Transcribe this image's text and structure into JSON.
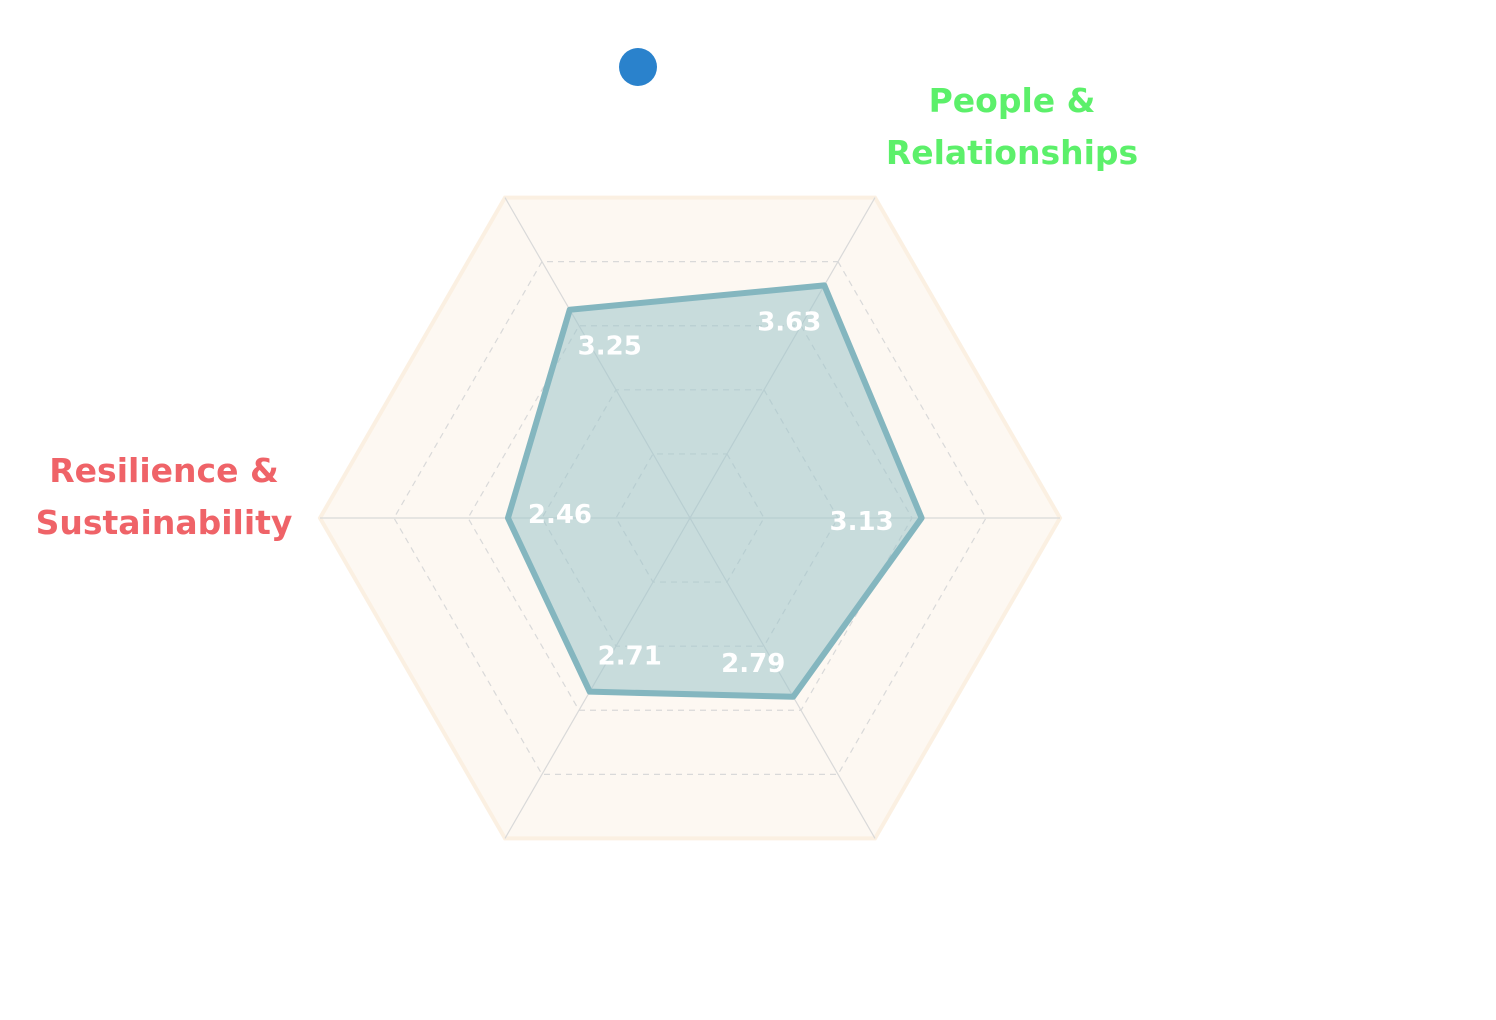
{
  "chart_data": {
    "type": "radar",
    "max": 5,
    "ring_count": 5,
    "axes": [
      {
        "label": "",
        "value": 3.63,
        "label_lines": [
          "People &",
          "Relationships"
        ],
        "label_color": "#5cf06a"
      },
      {
        "label": "",
        "value": 3.13,
        "label_lines": [],
        "label_color": ""
      },
      {
        "label": "",
        "value": 2.79,
        "label_lines": [],
        "label_color": ""
      },
      {
        "label": "",
        "value": 2.71,
        "label_lines": [],
        "label_color": ""
      },
      {
        "label": "",
        "value": 2.46,
        "label_lines": [
          "Resilience &",
          "Sustainability"
        ],
        "label_color": "#ef6368"
      },
      {
        "label": "",
        "value": 3.25,
        "label_lines": [],
        "label_color": ""
      }
    ],
    "data_labels": [
      "3.63",
      "3.13",
      "2.79",
      "2.71",
      "2.46",
      "3.25"
    ],
    "legend": {
      "marker_color": "#2a82cc",
      "text": ""
    },
    "colors": {
      "background_band": "#fdf8f2",
      "grid_line": "#d9d9d9",
      "series_fill": "#9cc4cb",
      "series_stroke": "#84b6bf",
      "data_label": "#ffffff"
    }
  }
}
